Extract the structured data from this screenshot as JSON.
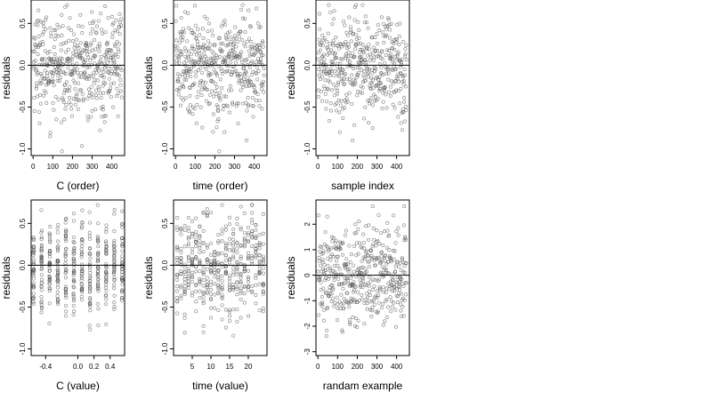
{
  "chart_data": [
    {
      "type": "scatter",
      "xlabel": "C (order)",
      "ylabel": "residuals",
      "xlim": [
        -10,
        465
      ],
      "ylim": [
        -1.08,
        0.78
      ],
      "xticks": [
        0,
        100,
        200,
        300,
        400
      ],
      "xtick_labels": [
        "0",
        "100",
        "200",
        "300",
        "400"
      ],
      "yticks": [
        -1.0,
        -0.5,
        0.0,
        0.5
      ],
      "ytick_labels": [
        "-1.0",
        "-0.5",
        "0.0",
        "0.5"
      ],
      "hline": 0,
      "points": {
        "n": 450,
        "x_range": [
          1,
          450
        ],
        "sd": 0.3,
        "min": -1.03,
        "max": 0.72,
        "pattern": "u-shaped"
      }
    },
    {
      "type": "scatter",
      "xlabel": "time (order)",
      "ylabel": "residuals",
      "xlim": [
        -10,
        465
      ],
      "ylim": [
        -1.08,
        0.78
      ],
      "xticks": [
        0,
        100,
        200,
        300,
        400
      ],
      "xtick_labels": [
        "0",
        "100",
        "200",
        "300",
        "400"
      ],
      "yticks": [
        -1.0,
        -0.5,
        0.0,
        0.5
      ],
      "ytick_labels": [
        "-1.0",
        "-0.5",
        "0.0",
        "0.5"
      ],
      "hline": 0,
      "points": {
        "n": 450,
        "x_range": [
          1,
          450
        ],
        "sd": 0.3,
        "min": -1.03,
        "max": 0.72,
        "pattern": "cyclic"
      }
    },
    {
      "type": "scatter",
      "xlabel": "sample index",
      "ylabel": "residuals",
      "xlim": [
        -10,
        465
      ],
      "ylim": [
        -1.08,
        0.78
      ],
      "xticks": [
        0,
        100,
        200,
        300,
        400
      ],
      "xtick_labels": [
        "0",
        "100",
        "200",
        "300",
        "400"
      ],
      "yticks": [
        -1.0,
        -0.5,
        0.0,
        0.5
      ],
      "ytick_labels": [
        "-1.0",
        "-0.5",
        "0.0",
        "0.5"
      ],
      "hline": 0,
      "points": {
        "n": 450,
        "x_range": [
          1,
          450
        ],
        "sd": 0.3,
        "min": -1.03,
        "max": 0.72,
        "pattern": "clustered"
      }
    },
    {
      "type": "scatter",
      "xlabel": "C (value)",
      "ylabel": "residuals",
      "xlim": [
        -0.58,
        0.58
      ],
      "ylim": [
        -1.08,
        0.78
      ],
      "xticks": [
        -0.4,
        0.0,
        0.2,
        0.4
      ],
      "xtick_labels": [
        "-0.4",
        "0.0",
        "0.2",
        "0.4"
      ],
      "yticks": [
        -1.0,
        -0.5,
        0.0,
        0.5
      ],
      "ytick_labels": [
        "-1.0",
        "-0.5",
        "0.0",
        "0.5"
      ],
      "hline": 0,
      "points": {
        "n": 450,
        "x_levels": [
          -0.55,
          -0.45,
          -0.35,
          -0.25,
          -0.15,
          -0.05,
          0.05,
          0.15,
          0.25,
          0.35,
          0.45,
          0.55
        ],
        "sd": 0.3,
        "min": -1.03,
        "max": 0.72,
        "pattern": "vertical bands"
      }
    },
    {
      "type": "scatter",
      "xlabel": "time (value)",
      "ylabel": "residuals",
      "xlim": [
        0,
        25
      ],
      "ylim": [
        -1.08,
        0.78
      ],
      "xticks": [
        5,
        10,
        15,
        20
      ],
      "xtick_labels": [
        "5",
        "10",
        "15",
        "20"
      ],
      "yticks": [
        -1.0,
        -0.5,
        0.0,
        0.5
      ],
      "ytick_labels": [
        "-1.0",
        "-0.5",
        "0.0",
        "0.5"
      ],
      "hline": 0,
      "points": {
        "n": 450,
        "x_range": [
          1,
          24
        ],
        "x_step": 1,
        "sd": 0.3,
        "min": -1.03,
        "max": 0.72,
        "pattern": "vertical bands"
      }
    },
    {
      "type": "scatter",
      "xlabel": "randam example",
      "ylabel": "residuals",
      "xlim": [
        -10,
        465
      ],
      "ylim": [
        -3.15,
        2.95
      ],
      "xticks": [
        0,
        100,
        200,
        300,
        400
      ],
      "xtick_labels": [
        "0",
        "100",
        "200",
        "300",
        "400"
      ],
      "yticks": [
        -3,
        -2,
        -1,
        0,
        1,
        2
      ],
      "ytick_labels": [
        "-3",
        "-2",
        "-1",
        "0",
        "1",
        "2"
      ],
      "hline": 0,
      "points": {
        "n": 450,
        "x_range": [
          1,
          450
        ],
        "sd": 1.0,
        "min": -3.0,
        "max": 2.7,
        "pattern": "random"
      }
    }
  ]
}
